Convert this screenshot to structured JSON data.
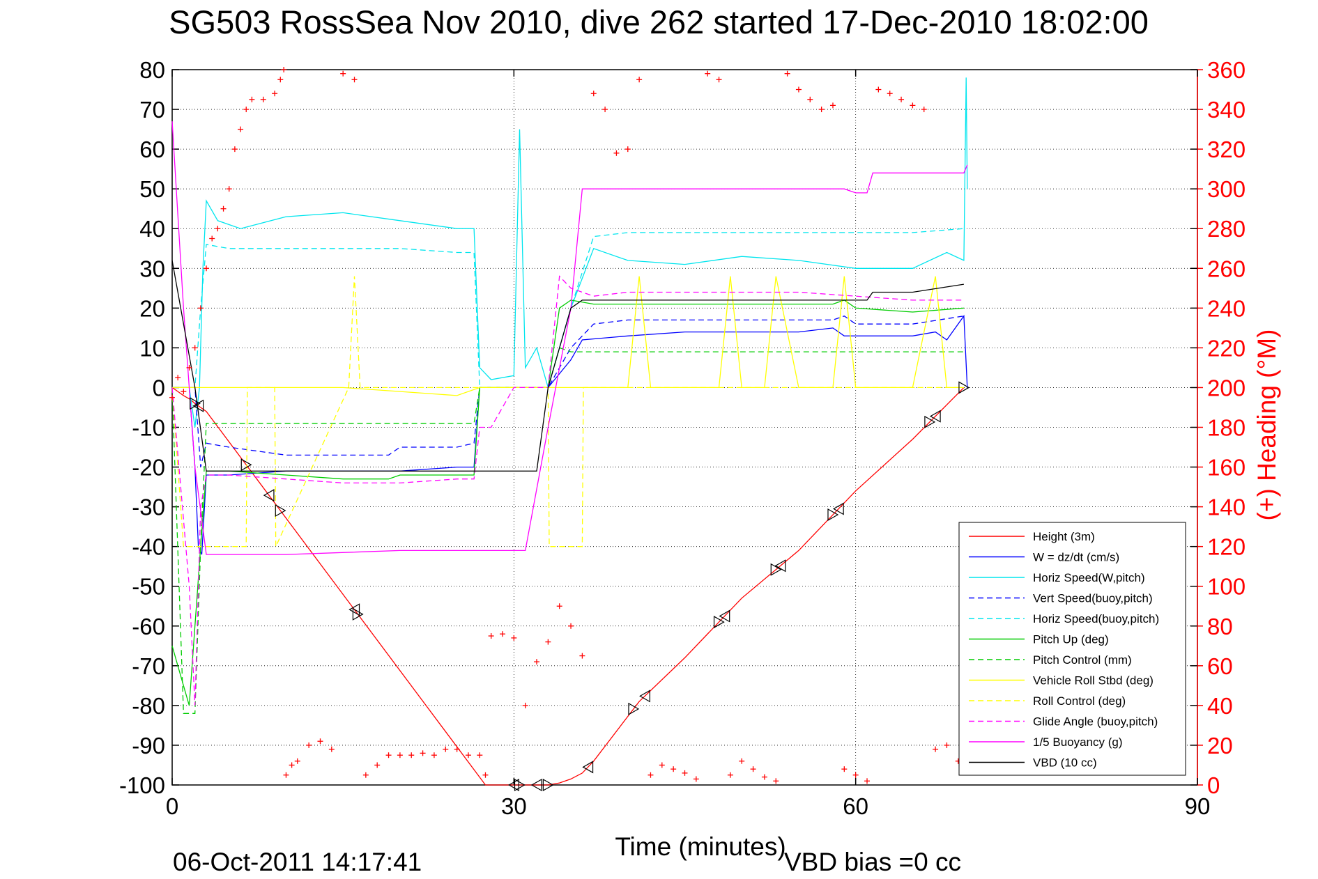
{
  "chart_data": {
    "type": "line",
    "title": "SG503 RossSea Nov 2010, dive 262 started 17-Dec-2010 18:02:00",
    "xlabel": "Time (minutes)",
    "ylabel_right": "(+) Heading (°M)",
    "xlim": [
      0,
      90
    ],
    "ylim": [
      -100,
      80
    ],
    "ylim_right": [
      0,
      360
    ],
    "xticks": [
      "0",
      "30",
      "60",
      "90"
    ],
    "yticks": [
      "80",
      "70",
      "60",
      "50",
      "40",
      "30",
      "20",
      "10",
      "0",
      "-10",
      "-20",
      "-30",
      "-40",
      "-50",
      "-60",
      "-70",
      "-80",
      "-90",
      "-100"
    ],
    "yticks_right": [
      "360",
      "340",
      "320",
      "300",
      "280",
      "260",
      "240",
      "220",
      "200",
      "180",
      "160",
      "140",
      "120",
      "100",
      "80",
      "60",
      "40",
      "20",
      "0"
    ],
    "grid": true,
    "legend_position": "bottom-right",
    "footer_left": "06-Oct-2011 14:17:41",
    "footer_right": "VBD bias =0 cc",
    "series": [
      {
        "name": "Height (3m)",
        "color": "#ff0000",
        "style": "solid",
        "x": [
          0,
          0.5,
          1,
          1.6,
          2,
          2.5,
          3,
          27.5,
          30,
          31,
          32,
          33,
          34,
          35,
          36,
          37,
          41,
          45,
          50,
          55,
          60,
          65,
          69.5
        ],
        "y": [
          0,
          -1,
          -2,
          -3,
          -4,
          -5,
          -6,
          -100,
          -100,
          -100,
          -100,
          -100,
          -99.5,
          -98.5,
          -97,
          -94,
          -79,
          -68,
          -53,
          -41,
          -26,
          -13,
          0
        ]
      },
      {
        "name": "W = dz/dt (cm/s)",
        "color": "#0000ff",
        "style": "solid",
        "x": [
          0,
          1.5,
          2,
          2.3,
          2.6,
          3,
          5,
          10,
          15,
          20,
          25,
          26.5,
          27,
          30,
          32,
          33,
          35,
          36,
          40,
          45,
          50,
          55,
          58,
          59,
          60,
          65,
          67,
          68,
          69.5,
          69.8
        ],
        "y": [
          0,
          0,
          -20,
          -40,
          -42,
          -22,
          -22,
          -21,
          -21,
          -21,
          -20,
          -20,
          0,
          0,
          0,
          0,
          7,
          12,
          13,
          14,
          14,
          14,
          15,
          13,
          13,
          13,
          14,
          12,
          18,
          0
        ]
      },
      {
        "name": "Horiz Speed(W,pitch)",
        "color": "#00e5ee",
        "style": "solid",
        "x": [
          0,
          1.5,
          2,
          2.4,
          2.7,
          3,
          4,
          6,
          10,
          15,
          20,
          25,
          26.5,
          27,
          28,
          30,
          30.5,
          31,
          32,
          33,
          35,
          37,
          40,
          45,
          50,
          55,
          60,
          65,
          68,
          69.5,
          69.7,
          69.8
        ],
        "y": [
          0,
          0,
          -10,
          0,
          30,
          47,
          42,
          40,
          43,
          44,
          42,
          40,
          40,
          5,
          2,
          3,
          65,
          5,
          10,
          0,
          20,
          35,
          32,
          31,
          33,
          32,
          30,
          30,
          34,
          32,
          78,
          50
        ]
      },
      {
        "name": "Vert Speed(buoy,pitch)",
        "color": "#0000ff",
        "style": "dashed",
        "x": [
          0,
          2,
          2.5,
          3,
          5,
          10,
          15,
          19,
          20,
          25,
          26.5,
          27,
          30,
          33,
          35,
          37,
          40,
          45,
          50,
          55,
          58,
          59,
          60,
          65,
          69.5
        ],
        "y": [
          0,
          0,
          -20,
          -14,
          -15,
          -17,
          -17,
          -17,
          -15,
          -15,
          -14,
          0,
          0,
          0,
          10,
          16,
          17,
          17,
          17,
          17,
          17,
          18,
          16,
          16,
          18
        ]
      },
      {
        "name": "Horiz Speed(buoy,pitch)",
        "color": "#00e5ee",
        "style": "dashed",
        "x": [
          0,
          2,
          2.5,
          3,
          5,
          10,
          15,
          20,
          25,
          26.5,
          27,
          30,
          33,
          35,
          37,
          40,
          45,
          50,
          55,
          60,
          65,
          69.5
        ],
        "y": [
          0,
          0,
          20,
          36,
          35,
          35,
          35,
          35,
          34,
          34,
          0,
          0,
          0,
          20,
          38,
          39,
          39,
          39,
          39,
          39,
          39,
          40
        ]
      },
      {
        "name": "Pitch Up (deg)",
        "color": "#00cc00",
        "style": "solid",
        "x": [
          0,
          1,
          1.5,
          2,
          2.5,
          3,
          5,
          10,
          15,
          19,
          20,
          25,
          26.5,
          27,
          30,
          33,
          34,
          35,
          37,
          40,
          45,
          50,
          55,
          58,
          59,
          60,
          65,
          69.5
        ],
        "y": [
          -65,
          -75,
          -80,
          -60,
          -40,
          -21,
          -21,
          -22,
          -23,
          -23,
          -22,
          -22,
          -22,
          0,
          0,
          0,
          20,
          22,
          21,
          21,
          21,
          21,
          21,
          21,
          22,
          20,
          19,
          20
        ]
      },
      {
        "name": "Pitch Control (mm)",
        "color": "#00cc00",
        "style": "dashed",
        "x": [
          0,
          1,
          2,
          2.5,
          3,
          5,
          10,
          15,
          20,
          25,
          26.5,
          27,
          30,
          33,
          34,
          35,
          37,
          40,
          45,
          50,
          55,
          60,
          65,
          69.5
        ],
        "y": [
          0,
          -82,
          -82,
          -40,
          -9,
          -9,
          -9,
          -9,
          -9,
          -9,
          -9,
          0,
          0,
          0,
          10,
          9,
          9,
          9,
          9,
          9,
          9,
          9,
          9,
          9
        ]
      },
      {
        "name": "Vehicle Roll Stbd (deg)",
        "color": "#ffff00",
        "style": "solid",
        "x": [
          0,
          2,
          5,
          10,
          15,
          20,
          25,
          27,
          30,
          33,
          36,
          40,
          41,
          42,
          43,
          45,
          48,
          49,
          50,
          52,
          53,
          55,
          58,
          59,
          60,
          65,
          67,
          68,
          69.5
        ],
        "y": [
          0,
          0,
          0,
          0,
          0,
          -1,
          -2,
          0,
          0,
          0,
          0,
          0,
          28,
          0,
          0,
          0,
          0,
          28,
          0,
          0,
          28,
          0,
          0,
          28,
          0,
          0,
          28,
          0,
          0
        ]
      },
      {
        "name": "Roll Control (deg)",
        "color": "#ffff00",
        "style": "dashed",
        "x": [
          0,
          1,
          3,
          6.5,
          6.6,
          9,
          9.1,
          15.5,
          16,
          16.5,
          20,
          27,
          30,
          33,
          33.1,
          36,
          36.1,
          40,
          45,
          50,
          55,
          60,
          65,
          69.5
        ],
        "y": [
          0,
          -40,
          -40,
          -40,
          0,
          0,
          -40,
          0,
          28,
          0,
          0,
          0,
          0,
          0,
          -40,
          -40,
          0,
          0,
          0,
          0,
          0,
          0,
          0,
          0
        ]
      },
      {
        "name": "Glide Angle (buoy,pitch)",
        "color": "#ff00ff",
        "style": "dashed",
        "x": [
          0,
          1.5,
          2,
          2.5,
          3,
          5,
          10,
          15,
          20,
          25,
          26.5,
          27,
          28,
          30,
          33,
          34,
          35,
          37,
          40,
          45,
          50,
          55,
          60,
          65,
          69.5
        ],
        "y": [
          0,
          -50,
          -80,
          -30,
          -22,
          -22,
          -23,
          -24,
          -24,
          -23,
          -23,
          -10,
          -10,
          0,
          0,
          28,
          25,
          23,
          24,
          24,
          24,
          24,
          23,
          22,
          22
        ]
      },
      {
        "name": "1/5 Buoyancy (g)",
        "color": "#ff00ff",
        "style": "solid",
        "x": [
          0,
          1,
          2,
          3,
          10,
          20,
          25,
          30,
          31,
          33,
          35,
          36,
          40,
          45,
          50,
          55,
          58,
          59,
          60,
          61,
          61.5,
          65,
          69.5,
          69.8
        ],
        "y": [
          67,
          20,
          -20,
          -42,
          -42,
          -41,
          -41,
          -41,
          -41,
          -10,
          20,
          50,
          50,
          50,
          50,
          50,
          50,
          50,
          49,
          49,
          54,
          54,
          54,
          56
        ]
      },
      {
        "name": "VBD (10 cc)",
        "color": "#000000",
        "style": "solid",
        "x": [
          0,
          2,
          3,
          5,
          10,
          20,
          25,
          27,
          30,
          32,
          33,
          35,
          36,
          40,
          45,
          50,
          55,
          60,
          61,
          61.5,
          65,
          69.5
        ],
        "y": [
          32,
          0,
          -21,
          -21,
          -21,
          -21,
          -21,
          -21,
          -21,
          -21,
          0,
          20,
          22,
          22,
          22,
          22,
          22,
          22,
          22,
          24,
          24,
          26
        ]
      },
      {
        "name": "Heading",
        "color": "#ff0000",
        "style": "plus",
        "x": [
          0,
          0.5,
          1,
          1.5,
          2,
          2.5,
          3,
          3.5,
          4,
          4.5,
          5,
          5.5,
          6,
          6.5,
          7,
          8,
          9,
          9.5,
          9.8,
          10,
          10.5,
          11,
          12,
          13,
          14,
          15,
          16,
          17,
          18,
          19,
          20,
          21,
          22,
          23,
          24,
          25,
          26,
          27,
          27.5,
          28,
          29,
          30,
          31,
          32,
          33,
          34,
          35,
          36,
          37,
          38,
          39,
          40,
          41,
          42,
          43,
          44,
          45,
          46,
          47,
          48,
          49,
          50,
          51,
          52,
          53,
          54,
          55,
          56,
          57,
          58,
          59,
          60,
          61,
          62,
          63,
          64,
          65,
          66,
          67,
          68,
          69,
          69.5
        ],
        "y": [
          195,
          205,
          198,
          210,
          220,
          240,
          260,
          275,
          280,
          290,
          300,
          320,
          330,
          340,
          345,
          345,
          348,
          355,
          360,
          5,
          10,
          12,
          20,
          22,
          18,
          358,
          355,
          5,
          10,
          15,
          15,
          15,
          16,
          15,
          18,
          18,
          15,
          15,
          5,
          75,
          76,
          74,
          40,
          62,
          72,
          90,
          80,
          65,
          348,
          340,
          318,
          320,
          355,
          5,
          10,
          8,
          6,
          3,
          358,
          355,
          5,
          12,
          8,
          4,
          2,
          358,
          350,
          345,
          340,
          342,
          8,
          5,
          2,
          350,
          348,
          345,
          342,
          340,
          18,
          20,
          12,
          8
        ]
      }
    ]
  }
}
